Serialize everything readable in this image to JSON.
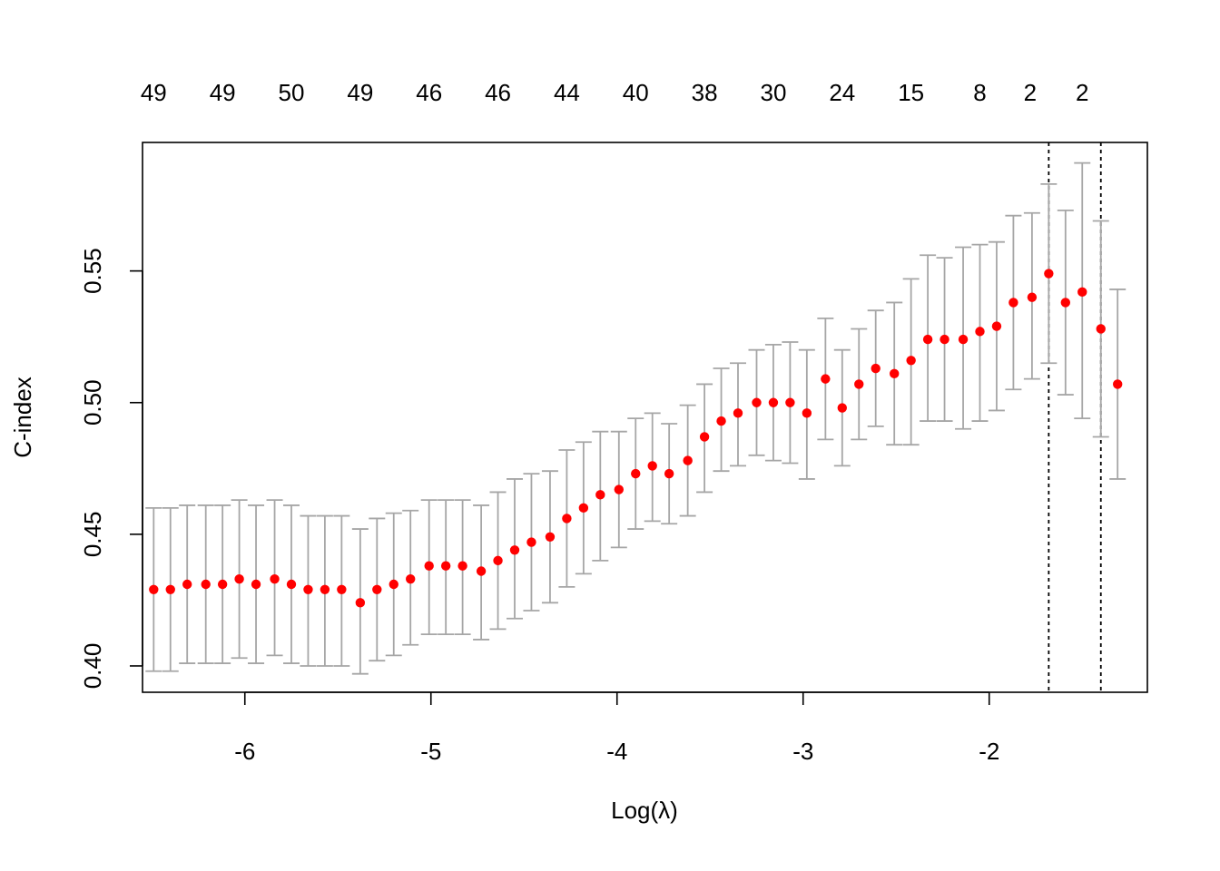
{
  "chart_data": {
    "type": "scatter",
    "subtype": "cross-validation error bar plot",
    "xlabel": "Log(λ)",
    "ylabel": "C-index",
    "xlim": [
      -6.55,
      -1.15
    ],
    "ylim": [
      0.39,
      0.5988
    ],
    "x_ticks": [
      -6,
      -5,
      -4,
      -3,
      -2
    ],
    "x_tick_labels": [
      "-6",
      "-5",
      "-4",
      "-3",
      "-2"
    ],
    "y_ticks": [
      0.4,
      0.45,
      0.5,
      0.55
    ],
    "y_tick_labels": [
      "0.40",
      "0.45",
      "0.50",
      "0.55"
    ],
    "top_axis": {
      "x": [
        -6.49,
        -6.12,
        -5.75,
        -5.38,
        -5.01,
        -4.64,
        -4.27,
        -3.9,
        -3.53,
        -3.16,
        -2.79,
        -2.42,
        -2.05,
        -1.78,
        -1.5
      ],
      "labels": [
        "49",
        "49",
        "50",
        "49",
        "46",
        "46",
        "44",
        "40",
        "38",
        "30",
        "24",
        "15",
        "8",
        "2",
        "2"
      ]
    },
    "vlines": [
      -1.68,
      -1.4
    ],
    "point_color": "#ff0000",
    "errorbar_color": "#a6a6a6",
    "grid": false,
    "series": [
      {
        "x": [
          -6.49,
          -6.4,
          -6.31,
          -6.21,
          -6.12,
          -6.03,
          -5.94,
          -5.84,
          -5.75,
          -5.66,
          -5.57,
          -5.48,
          -5.38,
          -5.29,
          -5.2,
          -5.11,
          -5.01,
          -4.92,
          -4.83,
          -4.73,
          -4.64,
          -4.55,
          -4.46,
          -4.36,
          -4.27,
          -4.18,
          -4.09,
          -3.99,
          -3.9,
          -3.81,
          -3.72,
          -3.62,
          -3.53,
          -3.44,
          -3.35,
          -3.25,
          -3.16,
          -3.07,
          -2.98,
          -2.88,
          -2.79,
          -2.7,
          -2.61,
          -2.51,
          -2.42,
          -2.33,
          -2.24,
          -2.14,
          -2.05,
          -1.96,
          -1.87,
          -1.77,
          -1.68,
          -1.59,
          -1.5,
          -1.4,
          -1.31
        ],
        "y": [
          0.429,
          0.429,
          0.431,
          0.431,
          0.431,
          0.433,
          0.431,
          0.433,
          0.431,
          0.429,
          0.429,
          0.429,
          0.424,
          0.429,
          0.431,
          0.433,
          0.438,
          0.438,
          0.438,
          0.436,
          0.44,
          0.444,
          0.447,
          0.449,
          0.456,
          0.46,
          0.465,
          0.467,
          0.473,
          0.476,
          0.473,
          0.478,
          0.487,
          0.493,
          0.496,
          0.5,
          0.5,
          0.5,
          0.496,
          0.509,
          0.498,
          0.507,
          0.513,
          0.511,
          0.516,
          0.524,
          0.524,
          0.524,
          0.527,
          0.529,
          0.538,
          0.54,
          0.549,
          0.538,
          0.542,
          0.528,
          0.507
        ],
        "lower": [
          0.398,
          0.398,
          0.401,
          0.401,
          0.401,
          0.403,
          0.401,
          0.404,
          0.401,
          0.4,
          0.4,
          0.4,
          0.397,
          0.402,
          0.404,
          0.408,
          0.412,
          0.412,
          0.412,
          0.41,
          0.414,
          0.418,
          0.421,
          0.424,
          0.43,
          0.435,
          0.44,
          0.445,
          0.452,
          0.455,
          0.454,
          0.457,
          0.466,
          0.474,
          0.476,
          0.48,
          0.478,
          0.477,
          0.471,
          0.486,
          0.476,
          0.486,
          0.491,
          0.484,
          0.484,
          0.493,
          0.493,
          0.49,
          0.493,
          0.497,
          0.505,
          0.509,
          0.515,
          0.503,
          0.494,
          0.487,
          0.471
        ],
        "upper": [
          0.46,
          0.46,
          0.461,
          0.461,
          0.461,
          0.463,
          0.461,
          0.463,
          0.461,
          0.457,
          0.457,
          0.457,
          0.452,
          0.456,
          0.458,
          0.459,
          0.463,
          0.463,
          0.463,
          0.461,
          0.466,
          0.471,
          0.473,
          0.474,
          0.482,
          0.485,
          0.489,
          0.489,
          0.494,
          0.496,
          0.492,
          0.499,
          0.507,
          0.513,
          0.515,
          0.52,
          0.522,
          0.523,
          0.52,
          0.532,
          0.52,
          0.528,
          0.535,
          0.538,
          0.547,
          0.556,
          0.555,
          0.559,
          0.56,
          0.561,
          0.571,
          0.572,
          0.583,
          0.573,
          0.591,
          0.569,
          0.543
        ]
      }
    ]
  }
}
